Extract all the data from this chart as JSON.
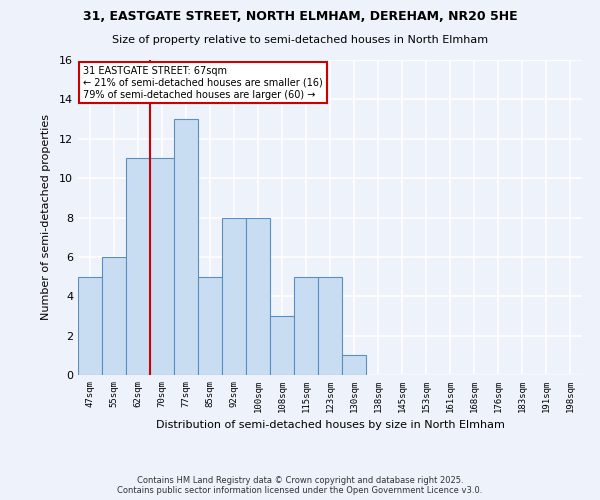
{
  "title": "31, EASTGATE STREET, NORTH ELMHAM, DEREHAM, NR20 5HE",
  "subtitle": "Size of property relative to semi-detached houses in North Elmham",
  "xlabel": "Distribution of semi-detached houses by size in North Elmham",
  "ylabel": "Number of semi-detached properties",
  "categories": [
    "47sqm",
    "55sqm",
    "62sqm",
    "70sqm",
    "77sqm",
    "85sqm",
    "92sqm",
    "100sqm",
    "108sqm",
    "115sqm",
    "123sqm",
    "130sqm",
    "138sqm",
    "145sqm",
    "153sqm",
    "161sqm",
    "168sqm",
    "176sqm",
    "183sqm",
    "191sqm",
    "198sqm"
  ],
  "values": [
    5,
    6,
    11,
    11,
    13,
    5,
    8,
    8,
    3,
    5,
    5,
    1,
    0,
    0,
    0,
    0,
    0,
    0,
    0,
    0,
    0
  ],
  "bar_color": "#c9ddf2",
  "bar_edge_color": "#5a8fc0",
  "property_line_x": 2.5,
  "annotation_title": "31 EASTGATE STREET: 67sqm",
  "annotation_line1": "← 21% of semi-detached houses are smaller (16)",
  "annotation_line2": "79% of semi-detached houses are larger (60) →",
  "property_line_color": "#cc0000",
  "annotation_box_edge": "#cc0000",
  "ylim": [
    0,
    16
  ],
  "yticks": [
    0,
    2,
    4,
    6,
    8,
    10,
    12,
    14,
    16
  ],
  "background_color": "#eef2fa",
  "grid_color": "#ffffff",
  "footer": "Contains HM Land Registry data © Crown copyright and database right 2025.\nContains public sector information licensed under the Open Government Licence v3.0."
}
